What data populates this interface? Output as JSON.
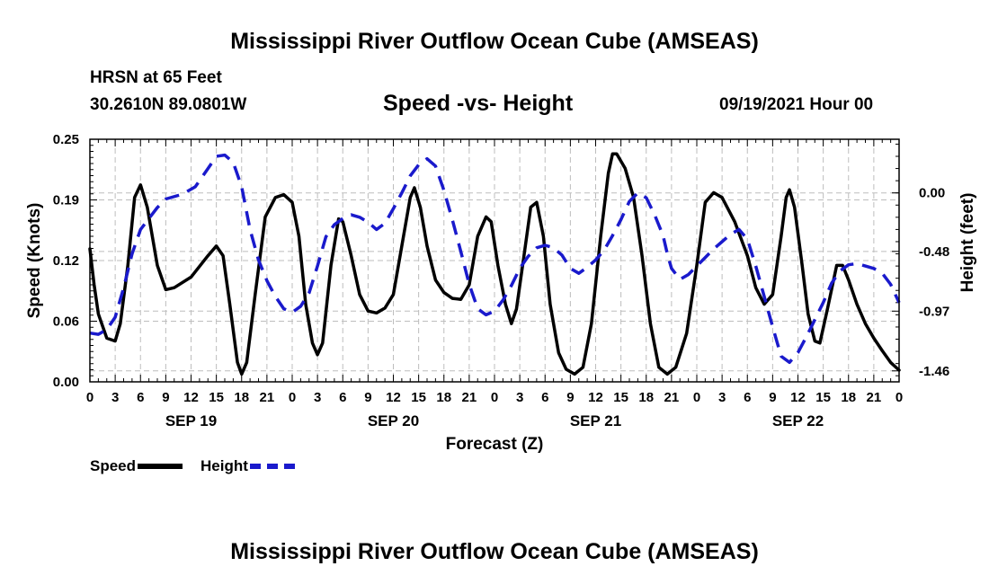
{
  "chart_data": {
    "type": "line",
    "title": "Mississippi River Outflow Ocean Cube (AMSEAS)",
    "footer_title": "Mississippi River Outflow Ocean Cube (AMSEAS)",
    "station": "HRSN at 65 Feet",
    "location": "30.2610N  89.0801W",
    "subtitle": "Speed -vs- Height",
    "datetime": "09/19/2021 Hour 00",
    "xlabel": "Forecast (Z)",
    "ylabel_left": "Speed (Knots)",
    "ylabel_right": "Height (feet)",
    "x_range_hours": [
      0,
      96
    ],
    "y_left_range": [
      0,
      0.25
    ],
    "y_left_ticks": [
      "0.00",
      "0.06",
      "0.12",
      "0.19",
      "0.25"
    ],
    "y_left_tick_values": [
      0,
      0.0625,
      0.125,
      0.1875,
      0.25
    ],
    "y_right_range": [
      -1.55,
      0.44
    ],
    "y_right_ticks": [
      "0.00",
      "-0.48",
      "-0.97",
      "-1.46"
    ],
    "y_right_tick_values": [
      0,
      -0.48,
      -0.97,
      -1.46
    ],
    "x_tick_labels": [
      "0",
      "3",
      "6",
      "9",
      "12",
      "15",
      "18",
      "21",
      "0",
      "3",
      "6",
      "9",
      "12",
      "15",
      "18",
      "21",
      "0",
      "3",
      "6",
      "9",
      "12",
      "15",
      "18",
      "21",
      "0",
      "3",
      "6",
      "9",
      "12",
      "15",
      "18",
      "21",
      "0"
    ],
    "date_labels": [
      {
        "label": "SEP 19",
        "hour": 12
      },
      {
        "label": "SEP 20",
        "hour": 36
      },
      {
        "label": "SEP 21",
        "hour": 60
      },
      {
        "label": "SEP 22",
        "hour": 84
      }
    ],
    "grid": true,
    "legend_position": "bottom-left",
    "series": [
      {
        "name": "Speed",
        "color": "#000000",
        "axis": "left",
        "points": [
          [
            0,
            0.137
          ],
          [
            0.5,
            0.1
          ],
          [
            1,
            0.07
          ],
          [
            2,
            0.045
          ],
          [
            3,
            0.042
          ],
          [
            3.6,
            0.06
          ],
          [
            4.5,
            0.12
          ],
          [
            5.3,
            0.19
          ],
          [
            6,
            0.203
          ],
          [
            6.8,
            0.18
          ],
          [
            8,
            0.12
          ],
          [
            9,
            0.095
          ],
          [
            10,
            0.097
          ],
          [
            12,
            0.108
          ],
          [
            14,
            0.13
          ],
          [
            15,
            0.14
          ],
          [
            15.8,
            0.13
          ],
          [
            16.6,
            0.08
          ],
          [
            17.5,
            0.02
          ],
          [
            18,
            0.008
          ],
          [
            18.6,
            0.02
          ],
          [
            19.6,
            0.09
          ],
          [
            20.8,
            0.17
          ],
          [
            22,
            0.19
          ],
          [
            23,
            0.193
          ],
          [
            24,
            0.185
          ],
          [
            24.8,
            0.15
          ],
          [
            25.6,
            0.08
          ],
          [
            26.4,
            0.04
          ],
          [
            27,
            0.028
          ],
          [
            27.6,
            0.04
          ],
          [
            28.6,
            0.12
          ],
          [
            29.5,
            0.168
          ],
          [
            30,
            0.165
          ],
          [
            31,
            0.13
          ],
          [
            32,
            0.09
          ],
          [
            33,
            0.073
          ],
          [
            34,
            0.071
          ],
          [
            35,
            0.076
          ],
          [
            36,
            0.09
          ],
          [
            37,
            0.14
          ],
          [
            38,
            0.19
          ],
          [
            38.5,
            0.2
          ],
          [
            39.2,
            0.18
          ],
          [
            40,
            0.14
          ],
          [
            41,
            0.105
          ],
          [
            42,
            0.092
          ],
          [
            43,
            0.086
          ],
          [
            44,
            0.085
          ],
          [
            45,
            0.1
          ],
          [
            46,
            0.15
          ],
          [
            47,
            0.17
          ],
          [
            47.6,
            0.165
          ],
          [
            48.4,
            0.12
          ],
          [
            49.3,
            0.08
          ],
          [
            50,
            0.06
          ],
          [
            50.6,
            0.075
          ],
          [
            51.5,
            0.13
          ],
          [
            52.3,
            0.18
          ],
          [
            53,
            0.185
          ],
          [
            53.8,
            0.15
          ],
          [
            54.6,
            0.08
          ],
          [
            55.6,
            0.03
          ],
          [
            56.5,
            0.013
          ],
          [
            57.5,
            0.008
          ],
          [
            58.5,
            0.015
          ],
          [
            59.5,
            0.06
          ],
          [
            60.6,
            0.15
          ],
          [
            61.5,
            0.215
          ],
          [
            62,
            0.235
          ],
          [
            62.5,
            0.235
          ],
          [
            63.5,
            0.22
          ],
          [
            64.5,
            0.19
          ],
          [
            65.5,
            0.13
          ],
          [
            66.5,
            0.06
          ],
          [
            67.5,
            0.015
          ],
          [
            68.5,
            0.008
          ],
          [
            69.5,
            0.015
          ],
          [
            70.8,
            0.05
          ],
          [
            72,
            0.12
          ],
          [
            73,
            0.185
          ],
          [
            74,
            0.195
          ],
          [
            75,
            0.19
          ],
          [
            76.5,
            0.165
          ],
          [
            78,
            0.13
          ],
          [
            79,
            0.097
          ],
          [
            80,
            0.08
          ],
          [
            81,
            0.09
          ],
          [
            82,
            0.15
          ],
          [
            82.6,
            0.19
          ],
          [
            83,
            0.198
          ],
          [
            83.6,
            0.18
          ],
          [
            84.5,
            0.12
          ],
          [
            85.2,
            0.07
          ],
          [
            86,
            0.042
          ],
          [
            86.6,
            0.04
          ],
          [
            87.5,
            0.075
          ],
          [
            88.6,
            0.12
          ],
          [
            89.3,
            0.12
          ],
          [
            90,
            0.105
          ],
          [
            91,
            0.08
          ],
          [
            92,
            0.06
          ],
          [
            93,
            0.045
          ],
          [
            94,
            0.032
          ],
          [
            95,
            0.02
          ],
          [
            96,
            0.012
          ]
        ]
      },
      {
        "name": "Height",
        "color": "#1a1acc",
        "axis": "right",
        "points": [
          [
            0,
            -1.15
          ],
          [
            1,
            -1.16
          ],
          [
            2,
            -1.12
          ],
          [
            3,
            -1.02
          ],
          [
            4,
            -0.78
          ],
          [
            5,
            -0.5
          ],
          [
            6,
            -0.3
          ],
          [
            8,
            -0.12
          ],
          [
            9,
            -0.05
          ],
          [
            11,
            -0.01
          ],
          [
            12.5,
            0.05
          ],
          [
            14,
            0.2
          ],
          [
            15,
            0.3
          ],
          [
            16,
            0.31
          ],
          [
            17,
            0.25
          ],
          [
            18,
            0.05
          ],
          [
            19,
            -0.3
          ],
          [
            20,
            -0.55
          ],
          [
            21,
            -0.72
          ],
          [
            22,
            -0.85
          ],
          [
            23,
            -0.95
          ],
          [
            24,
            -0.98
          ],
          [
            25,
            -0.93
          ],
          [
            26,
            -0.82
          ],
          [
            27,
            -0.6
          ],
          [
            28,
            -0.36
          ],
          [
            29,
            -0.26
          ],
          [
            30,
            -0.21
          ],
          [
            31,
            -0.18
          ],
          [
            32,
            -0.2
          ],
          [
            33,
            -0.24
          ],
          [
            34,
            -0.3
          ],
          [
            35,
            -0.25
          ],
          [
            36,
            -0.13
          ],
          [
            37,
            0.0
          ],
          [
            38,
            0.14
          ],
          [
            39,
            0.23
          ],
          [
            40,
            0.28
          ],
          [
            41,
            0.22
          ],
          [
            42,
            0.02
          ],
          [
            43,
            -0.22
          ],
          [
            44,
            -0.48
          ],
          [
            45,
            -0.75
          ],
          [
            46,
            -0.95
          ],
          [
            47,
            -1.0
          ],
          [
            48,
            -0.97
          ],
          [
            49,
            -0.88
          ],
          [
            50,
            -0.76
          ],
          [
            51,
            -0.62
          ],
          [
            52,
            -0.52
          ],
          [
            53,
            -0.45
          ],
          [
            54,
            -0.43
          ],
          [
            55,
            -0.45
          ],
          [
            56,
            -0.51
          ],
          [
            57,
            -0.62
          ],
          [
            58,
            -0.66
          ],
          [
            59,
            -0.61
          ],
          [
            60,
            -0.55
          ],
          [
            61,
            -0.47
          ],
          [
            62,
            -0.35
          ],
          [
            63,
            -0.22
          ],
          [
            64,
            -0.07
          ],
          [
            65,
            0.0
          ],
          [
            66,
            -0.04
          ],
          [
            67,
            -0.18
          ],
          [
            68,
            -0.35
          ],
          [
            68.5,
            -0.5
          ],
          [
            69,
            -0.62
          ],
          [
            70,
            -0.71
          ],
          [
            71,
            -0.67
          ],
          [
            72,
            -0.6
          ],
          [
            73,
            -0.53
          ],
          [
            74,
            -0.46
          ],
          [
            75,
            -0.4
          ],
          [
            76,
            -0.34
          ],
          [
            77,
            -0.3
          ],
          [
            78,
            -0.38
          ],
          [
            79,
            -0.6
          ],
          [
            80,
            -0.85
          ],
          [
            81,
            -1.1
          ],
          [
            82,
            -1.34
          ],
          [
            83,
            -1.39
          ],
          [
            84,
            -1.31
          ],
          [
            85,
            -1.18
          ],
          [
            86,
            -1.04
          ],
          [
            87,
            -0.9
          ],
          [
            88,
            -0.74
          ],
          [
            89,
            -0.64
          ],
          [
            90,
            -0.59
          ],
          [
            91,
            -0.58
          ],
          [
            92,
            -0.6
          ],
          [
            93,
            -0.62
          ],
          [
            94,
            -0.66
          ],
          [
            95,
            -0.75
          ],
          [
            96,
            -0.9
          ]
        ]
      }
    ]
  },
  "legend": {
    "speed_label": "Speed",
    "height_label": "Height"
  }
}
